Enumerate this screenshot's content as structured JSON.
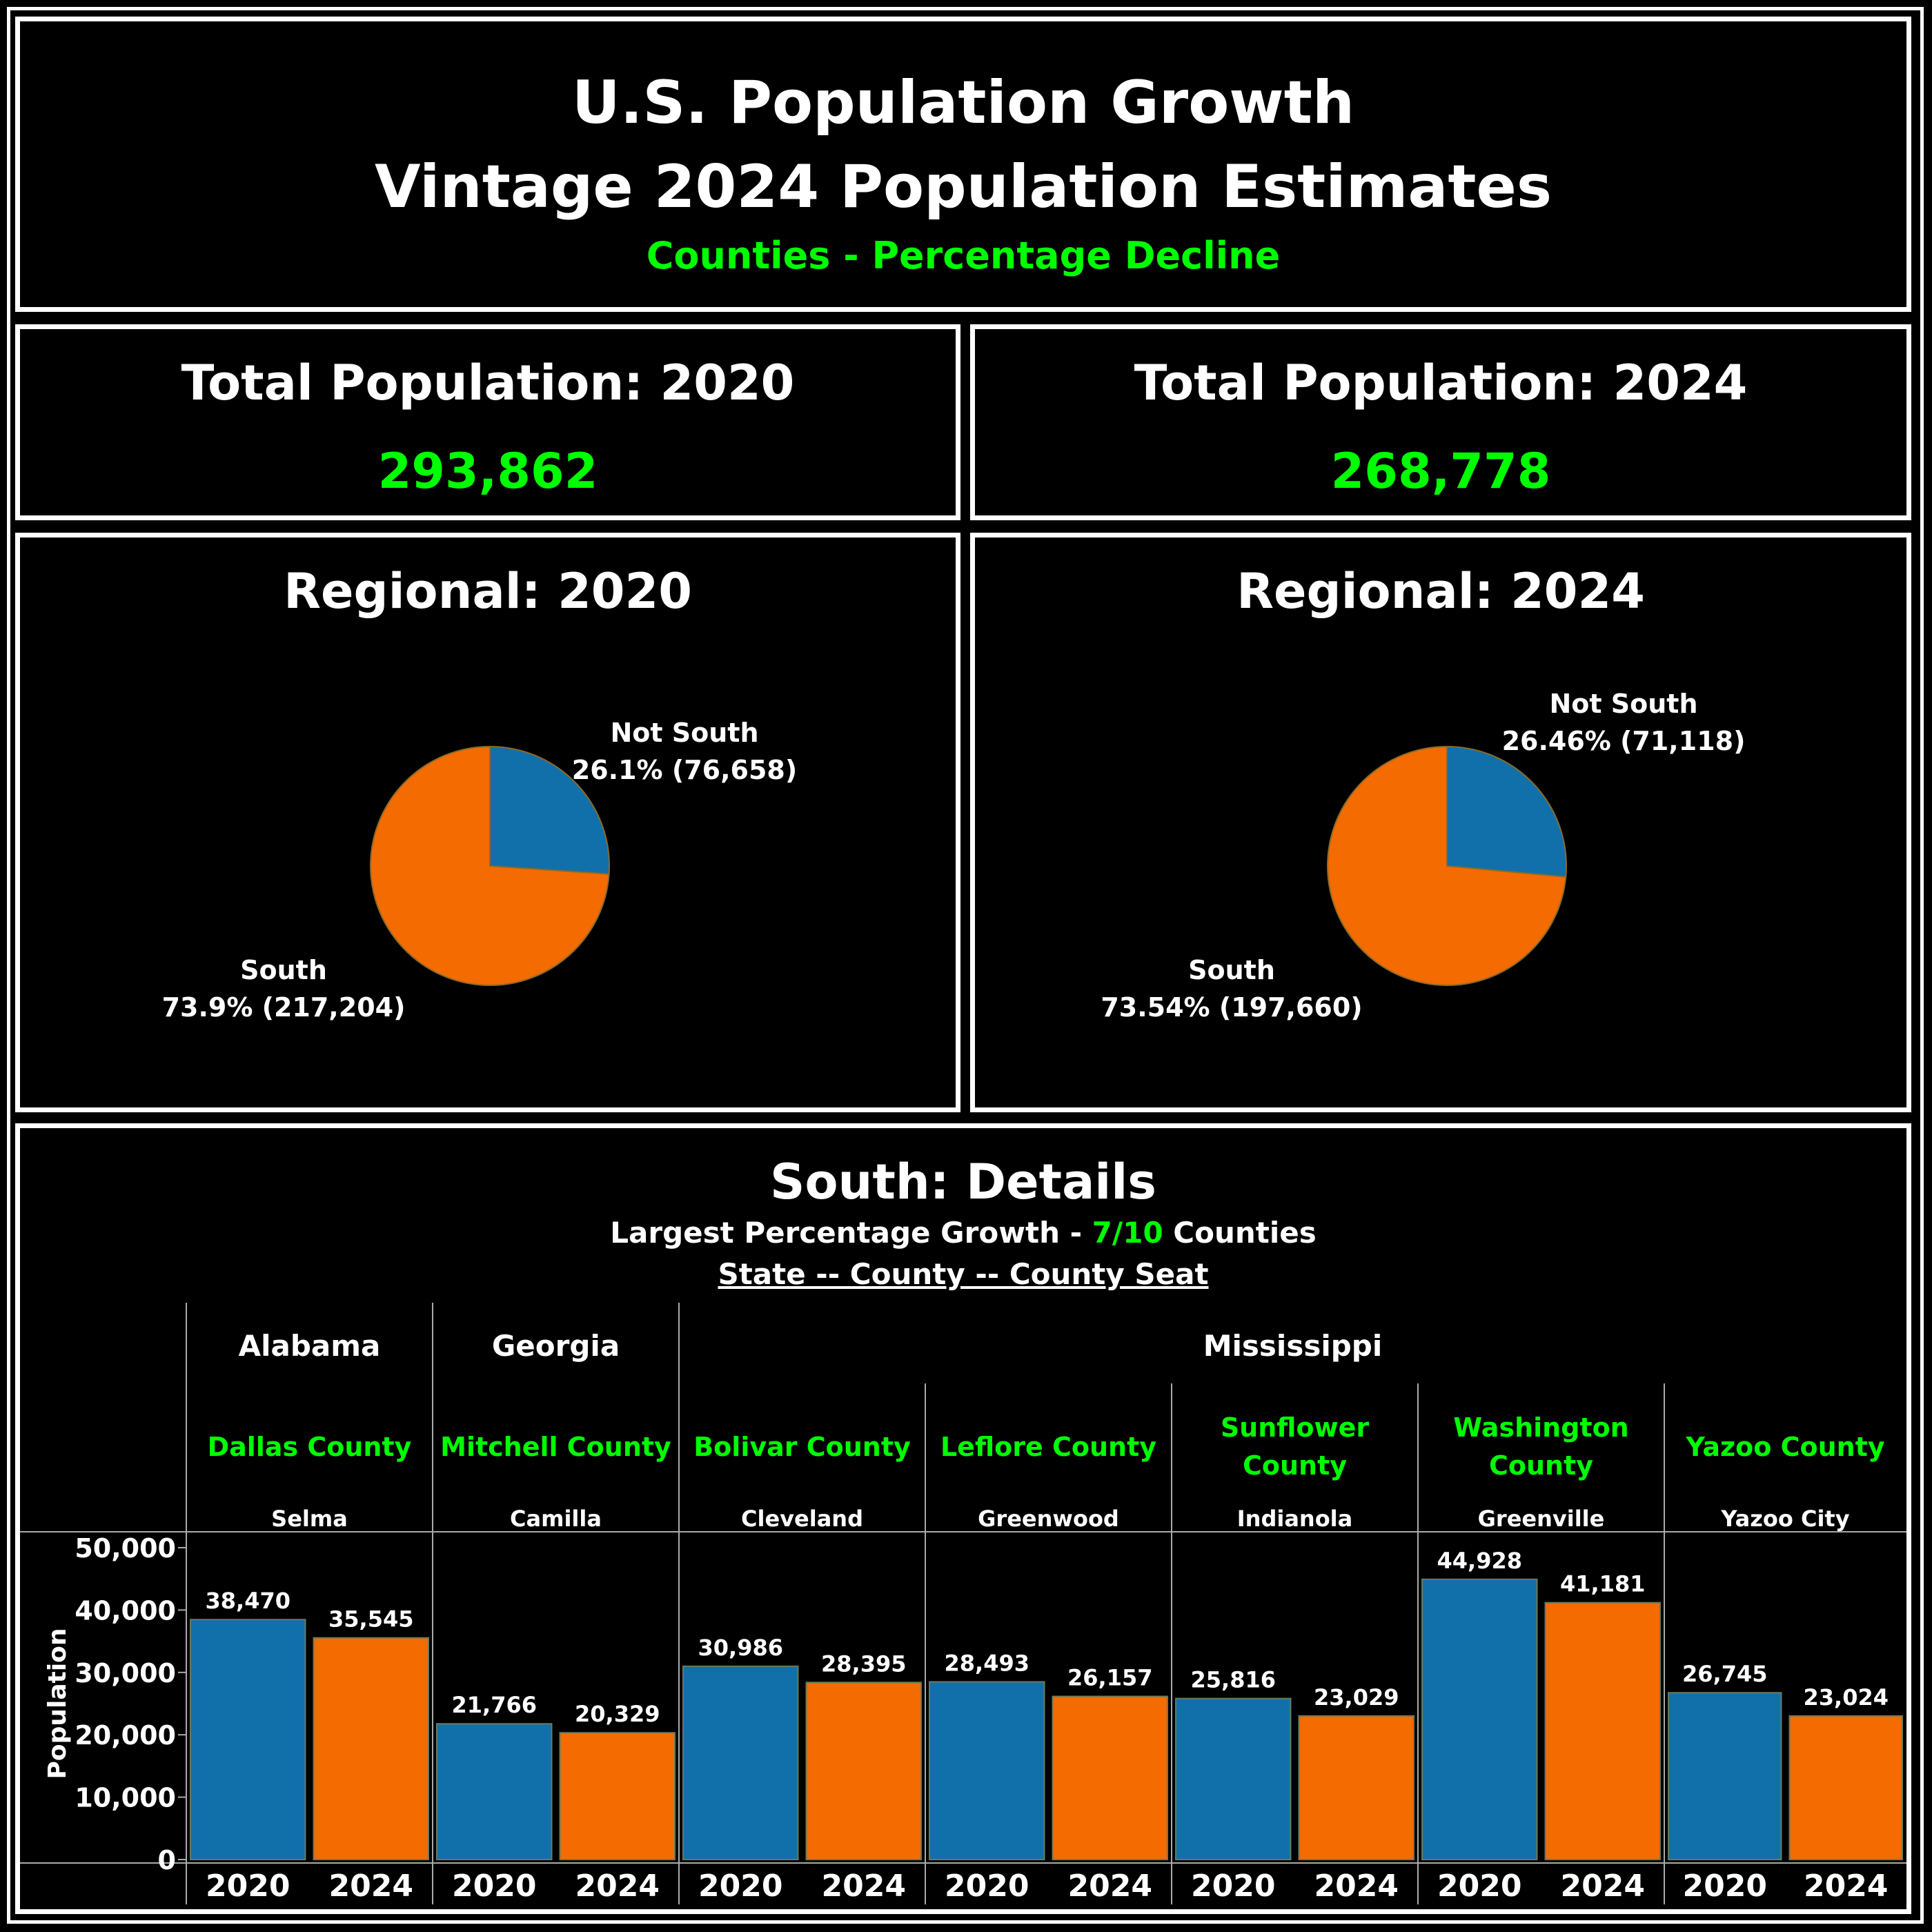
{
  "header": {
    "title_line1": "U.S. Population Growth",
    "title_line2": "Vintage 2024 Population Estimates",
    "subtitle": "Counties - Percentage Decline"
  },
  "kpis": {
    "pop2020": {
      "label": "Total Population: 2020",
      "value": "293,862"
    },
    "pop2024": {
      "label": "Total Population: 2024",
      "value": "268,778"
    }
  },
  "regional": {
    "r2020": {
      "title": "Regional: 2020"
    },
    "r2024": {
      "title": "Regional: 2024"
    }
  },
  "details": {
    "title": "South: Details",
    "subtitle_pre": "Largest Percentage Growth - ",
    "subtitle_highlight": "7/10",
    "subtitle_post": " Counties",
    "hierarchy_label": "State -- County -- County Seat"
  },
  "colors": {
    "y2020": "#1170aa",
    "y2024": "#f46b01",
    "highlight": "#00ff00",
    "background": "#000000",
    "text": "#ffffff"
  },
  "chart_data": [
    {
      "type": "pie",
      "title": "Regional: 2020",
      "slices": [
        {
          "label": "Not South",
          "pct_label": "26.1% (76,658)",
          "value": 76658,
          "color": "#1170aa"
        },
        {
          "label": "South",
          "pct_label": "73.9% (217,204)",
          "value": 217204,
          "color": "#f46b01"
        }
      ]
    },
    {
      "type": "pie",
      "title": "Regional: 2024",
      "slices": [
        {
          "label": "Not South",
          "pct_label": "26.46% (71,118)",
          "value": 71118,
          "color": "#1170aa"
        },
        {
          "label": "South",
          "pct_label": "73.54% (197,660)",
          "value": 197660,
          "color": "#f46b01"
        }
      ]
    },
    {
      "type": "bar",
      "title": "South: Details",
      "ylabel": "Population",
      "ylim": [
        0,
        50000
      ],
      "yticks": [
        0,
        10000,
        20000,
        30000,
        40000,
        50000
      ],
      "ytick_labels": [
        "0",
        "10,000",
        "20,000",
        "30,000",
        "40,000",
        "50,000"
      ],
      "states": [
        {
          "name": "Alabama",
          "span": 1
        },
        {
          "name": "Georgia",
          "span": 1
        },
        {
          "name": "Mississippi",
          "span": 5
        }
      ],
      "groups": [
        {
          "county": [
            "Dallas County"
          ],
          "seat": "Selma",
          "values": [
            38470,
            35545
          ],
          "labels": [
            "38,470",
            "35,545"
          ]
        },
        {
          "county": [
            "Mitchell County"
          ],
          "seat": "Camilla",
          "values": [
            21766,
            20329
          ],
          "labels": [
            "21,766",
            "20,329"
          ]
        },
        {
          "county": [
            "Bolivar County"
          ],
          "seat": "Cleveland",
          "values": [
            30986,
            28395
          ],
          "labels": [
            "30,986",
            "28,395"
          ]
        },
        {
          "county": [
            "Leflore County"
          ],
          "seat": "Greenwood",
          "values": [
            28493,
            26157
          ],
          "labels": [
            "28,493",
            "26,157"
          ]
        },
        {
          "county": [
            "Sunflower",
            "County"
          ],
          "seat": "Indianola",
          "values": [
            25816,
            23029
          ],
          "labels": [
            "25,816",
            "23,029"
          ]
        },
        {
          "county": [
            "Washington",
            "County"
          ],
          "seat": "Greenville",
          "values": [
            44928,
            41181
          ],
          "labels": [
            "44,928",
            "41,181"
          ]
        },
        {
          "county": [
            "Yazoo County"
          ],
          "seat": "Yazoo City",
          "values": [
            26745,
            23024
          ],
          "labels": [
            "26,745",
            "23,024"
          ]
        }
      ],
      "years": [
        "2020",
        "2024"
      ]
    }
  ]
}
